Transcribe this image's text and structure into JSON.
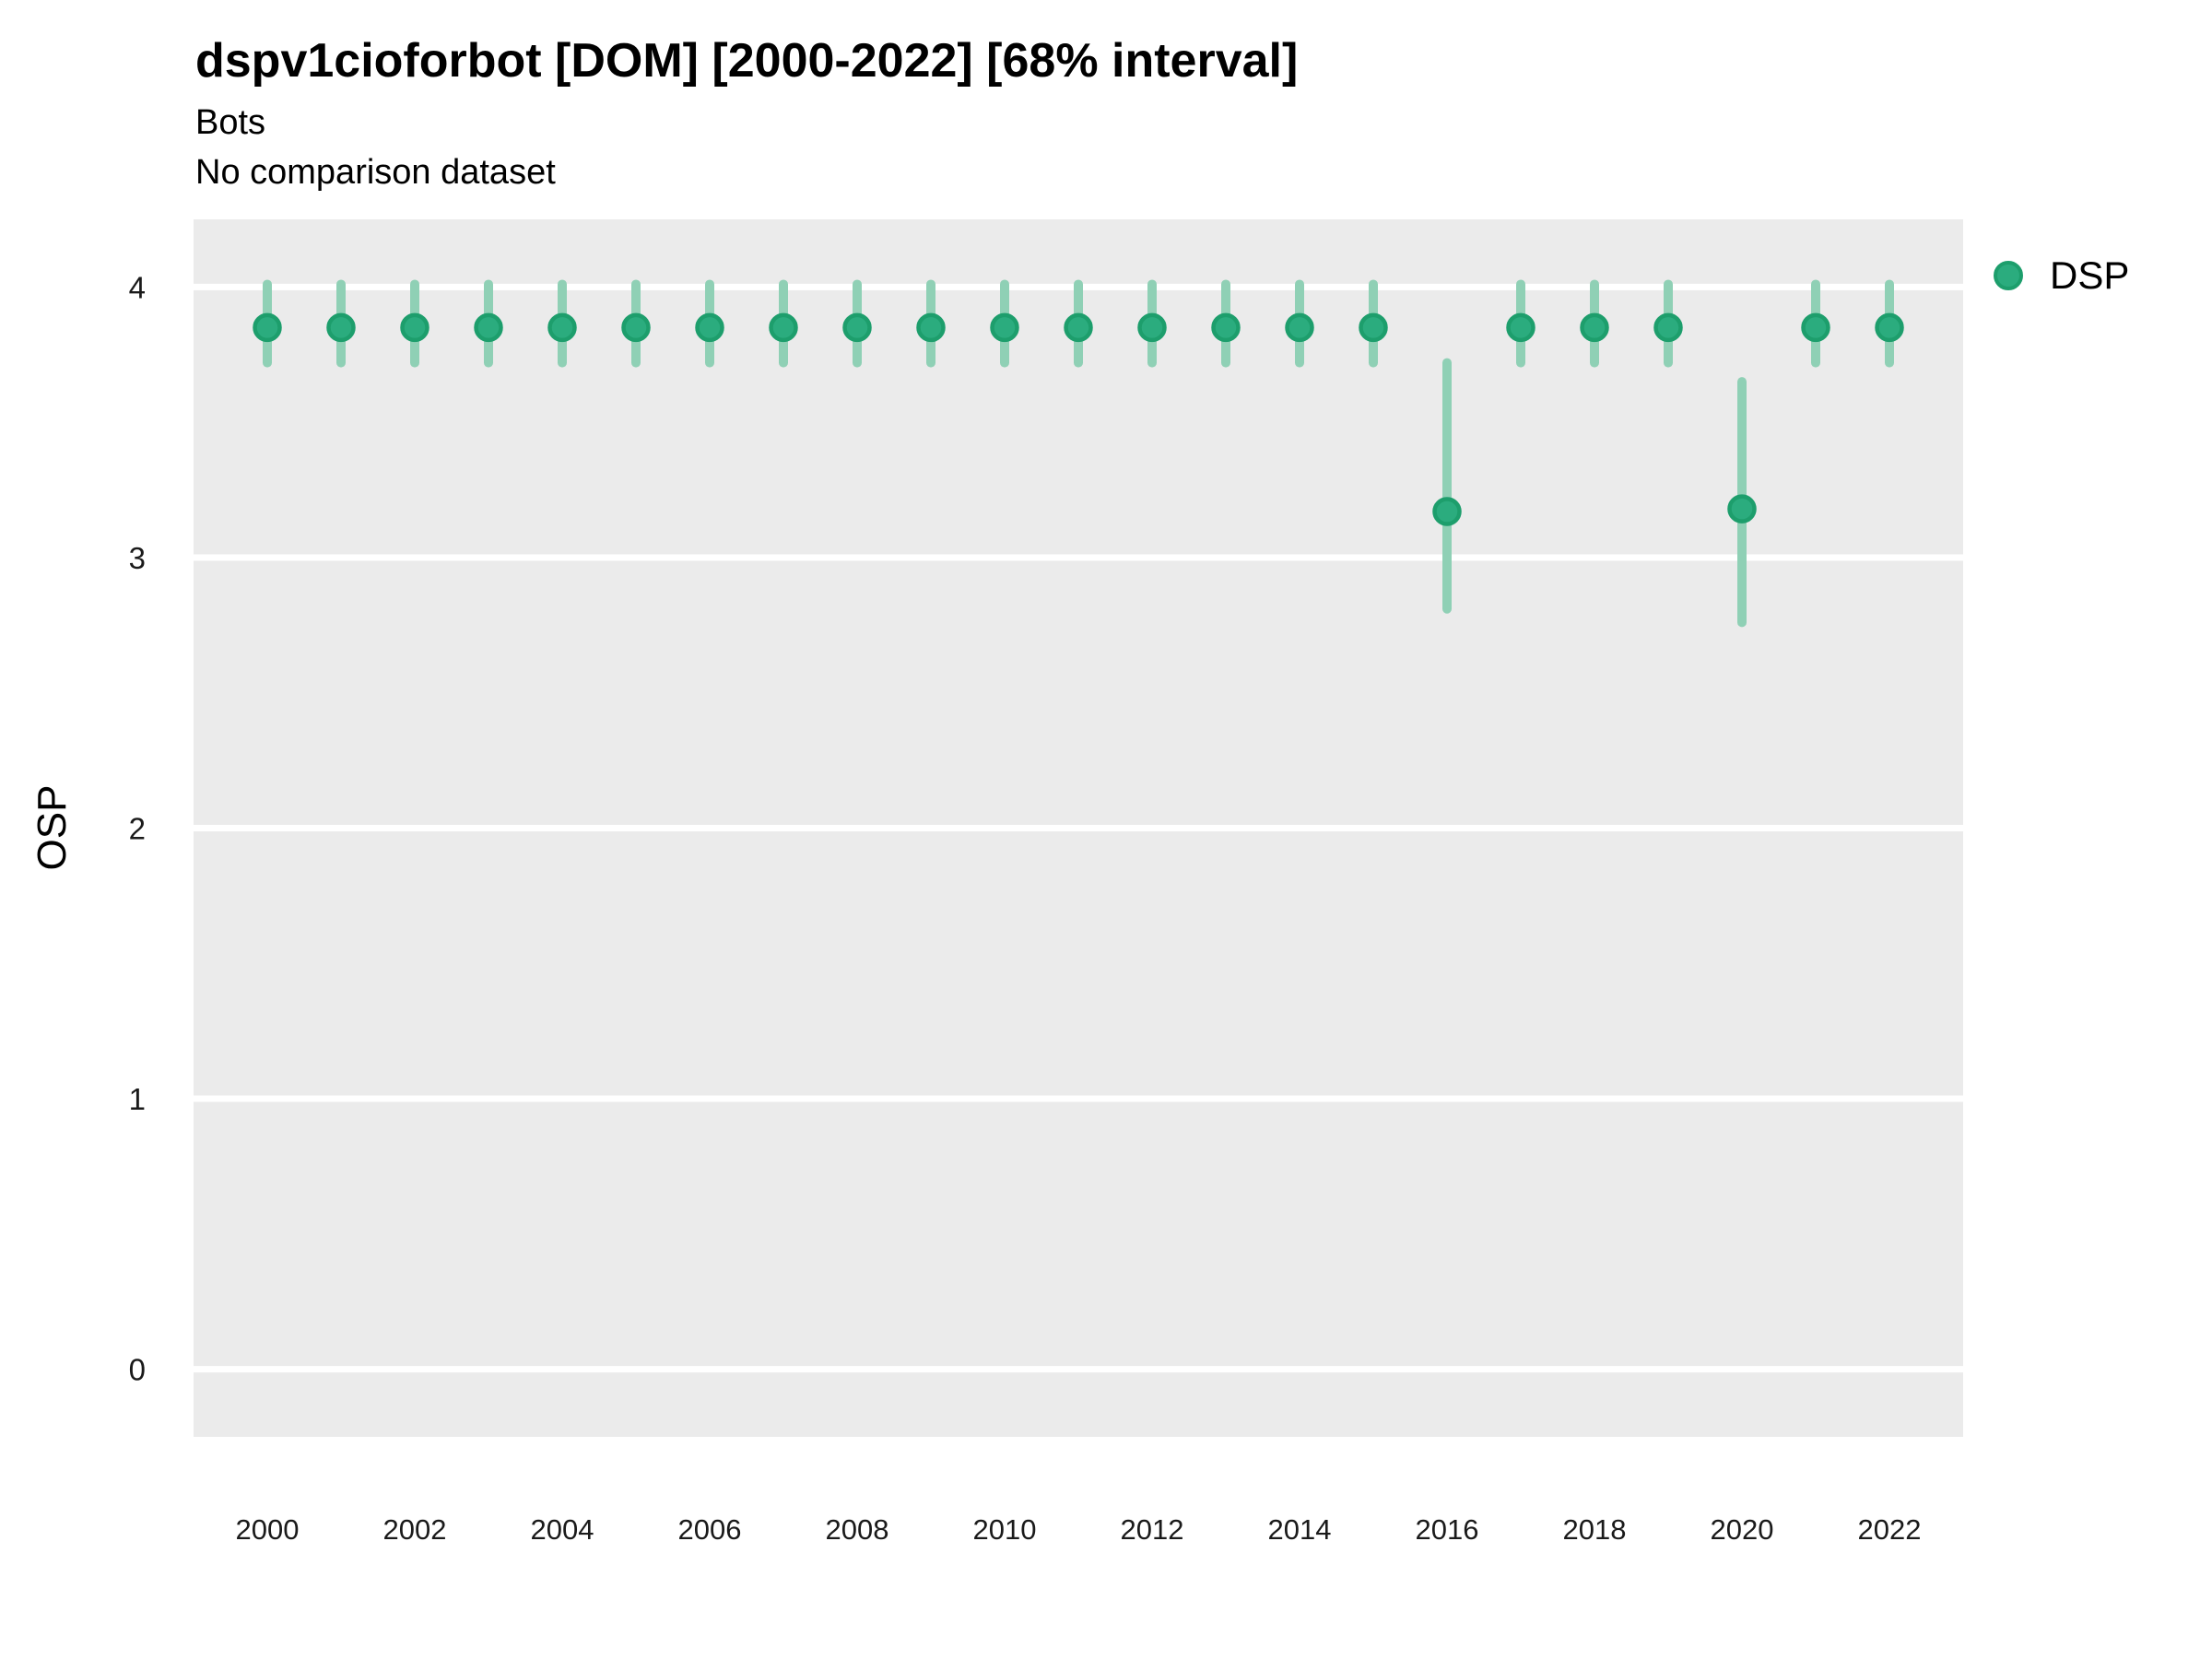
{
  "header": {
    "title": "dspv1cioforbot [DOM] [2000-2022] [68% interval]",
    "subtitle_line1": "Bots",
    "subtitle_line2": "No comparison dataset"
  },
  "legend": {
    "label": "DSP"
  },
  "colors": {
    "point_fill": "#2BAC7E",
    "point_stroke": "#1D9E6C",
    "interval_bar": "#8FD0B5",
    "panel_background": "#EBEBEB",
    "gridline": "#FFFFFF",
    "text": "#000000",
    "tick_text": "#1A1A1A"
  },
  "chart_data": {
    "type": "scatter",
    "title": "dspv1cioforbot [DOM] [2000-2022] [68% interval]",
    "subtitle": [
      "Bots",
      "No comparison dataset"
    ],
    "xlabel": "",
    "ylabel": "OSP",
    "interval": "68%",
    "grid": "horizontal-major-only",
    "legend_position": "right",
    "xlim": [
      1999,
      2023
    ],
    "ylim": [
      -0.25,
      4.25
    ],
    "x_ticks": [
      2000,
      2002,
      2004,
      2006,
      2008,
      2010,
      2012,
      2014,
      2016,
      2018,
      2020,
      2022
    ],
    "y_ticks": [
      0,
      1,
      2,
      3,
      4
    ],
    "series": [
      {
        "name": "DSP",
        "x": [
          2000,
          2001,
          2002,
          2003,
          2004,
          2005,
          2006,
          2007,
          2008,
          2009,
          2010,
          2011,
          2012,
          2013,
          2014,
          2015,
          2016,
          2017,
          2018,
          2019,
          2020,
          2021,
          2022
        ],
        "values": [
          3.85,
          3.85,
          3.85,
          3.85,
          3.85,
          3.85,
          3.85,
          3.85,
          3.85,
          3.85,
          3.85,
          3.85,
          3.85,
          3.85,
          3.85,
          3.85,
          3.17,
          3.85,
          3.85,
          3.85,
          3.18,
          3.85,
          3.85
        ],
        "lower": [
          3.72,
          3.72,
          3.72,
          3.72,
          3.72,
          3.72,
          3.72,
          3.72,
          3.72,
          3.72,
          3.72,
          3.72,
          3.72,
          3.72,
          3.72,
          3.72,
          2.81,
          3.72,
          3.72,
          3.72,
          2.76,
          3.72,
          3.72
        ],
        "upper": [
          4.01,
          4.01,
          4.01,
          4.01,
          4.01,
          4.01,
          4.01,
          4.01,
          4.01,
          4.01,
          4.01,
          4.01,
          4.01,
          4.01,
          4.01,
          4.01,
          3.72,
          4.01,
          4.01,
          4.01,
          3.65,
          4.01,
          4.01
        ]
      }
    ]
  }
}
